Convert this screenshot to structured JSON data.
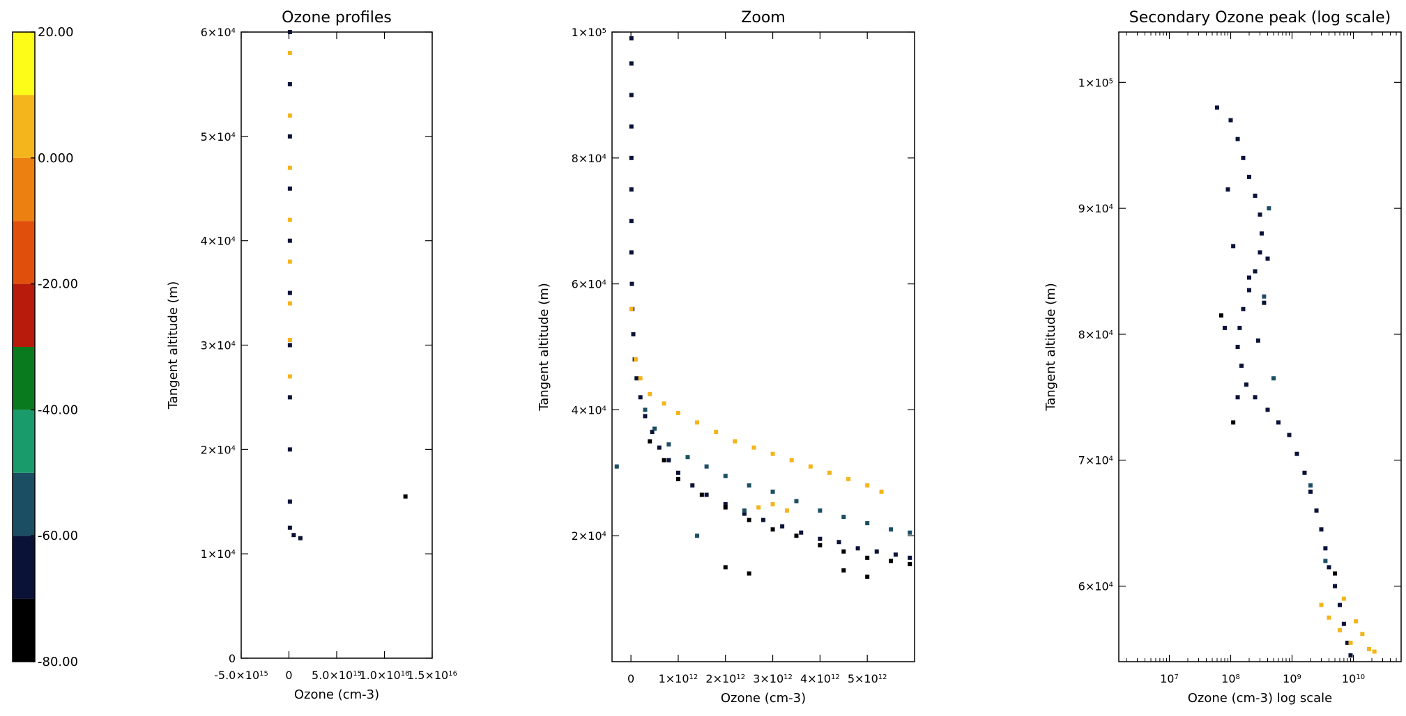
{
  "colorbar": {
    "ticks": [
      "20.00",
      "0.000",
      "-20.00",
      "-40.00",
      "-60.00",
      "-80.00"
    ],
    "min": -80,
    "max": 20,
    "bands": [
      {
        "from": -80,
        "to": -70,
        "color": "#000000"
      },
      {
        "from": -70,
        "to": -60,
        "color": "#0a1238"
      },
      {
        "from": -60,
        "to": -50,
        "color": "#1c4e63"
      },
      {
        "from": -50,
        "to": -40,
        "color": "#1a9b6c"
      },
      {
        "from": -40,
        "to": -30,
        "color": "#0a7a1e"
      },
      {
        "from": -30,
        "to": -20,
        "color": "#b81b0c"
      },
      {
        "from": -20,
        "to": -10,
        "color": "#e0500c"
      },
      {
        "from": -10,
        "to": 0,
        "color": "#ec8010"
      },
      {
        "from": 0,
        "to": 10,
        "color": "#f4b41c"
      },
      {
        "from": 10,
        "to": 20,
        "color": "#fcfc18"
      }
    ]
  },
  "chart_data": [
    {
      "type": "scatter",
      "title": "Ozone profiles",
      "xlabel": "Ozone (cm-3)",
      "ylabel": "Tangent altitude (m)",
      "xlim": [
        -5000000000000000.0,
        1.5e+16
      ],
      "ylim": [
        0,
        60000
      ],
      "x_ticks": [
        {
          "value": -5000000000000000.0,
          "mant": "-5.0×10",
          "exp": "15"
        },
        {
          "value": 0,
          "mant": "0",
          "exp": ""
        },
        {
          "value": 5000000000000000.0,
          "mant": "5.0×10",
          "exp": "15"
        },
        {
          "value": 1e+16,
          "mant": "1.0×10",
          "exp": "16"
        },
        {
          "value": 1.5e+16,
          "mant": "1.5×10",
          "exp": "16"
        }
      ],
      "y_ticks": [
        {
          "value": 0,
          "mant": "0",
          "exp": ""
        },
        {
          "value": 10000,
          "mant": "1×10",
          "exp": "4"
        },
        {
          "value": 20000,
          "mant": "2×10",
          "exp": "4"
        },
        {
          "value": 30000,
          "mant": "3×10",
          "exp": "4"
        },
        {
          "value": 40000,
          "mant": "4×10",
          "exp": "4"
        },
        {
          "value": 50000,
          "mant": "5×10",
          "exp": "4"
        },
        {
          "value": 60000,
          "mant": "6×10",
          "exp": "4"
        }
      ],
      "series": [
        {
          "color": "#0a1238",
          "points": [
            [
              100000000000000.0,
              60000
            ],
            [
              100000000000000.0,
              55000
            ],
            [
              100000000000000.0,
              50000
            ],
            [
              100000000000000.0,
              45000
            ],
            [
              100000000000000.0,
              40000
            ],
            [
              100000000000000.0,
              35000
            ],
            [
              100000000000000.0,
              30000
            ],
            [
              100000000000000.0,
              25000
            ],
            [
              100000000000000.0,
              20000
            ],
            [
              100000000000000.0,
              15000
            ],
            [
              100000000000000.0,
              12500
            ],
            [
              500000000000000.0,
              11800
            ],
            [
              1200000000000000.0,
              11500
            ]
          ]
        },
        {
          "color": "#f4b41c",
          "points": [
            [
              100000000000000.0,
              58000
            ],
            [
              100000000000000.0,
              52000
            ],
            [
              100000000000000.0,
              47000
            ],
            [
              100000000000000.0,
              42000
            ],
            [
              100000000000000.0,
              38000
            ],
            [
              100000000000000.0,
              34000
            ],
            [
              100000000000000.0,
              30500
            ],
            [
              100000000000000.0,
              27000
            ]
          ]
        },
        {
          "color": "#000000",
          "points": [
            [
              1.22e+16,
              15500
            ]
          ]
        }
      ]
    },
    {
      "type": "scatter",
      "title": "Zoom",
      "xlabel": "Ozone (cm-3)",
      "ylabel": "Tangent altitude (m)",
      "xlim": [
        -400000000000.0,
        6000000000000.0
      ],
      "ylim": [
        0,
        100000
      ],
      "x_ticks": [
        {
          "value": 0,
          "mant": "0",
          "exp": ""
        },
        {
          "value": 1000000000000.0,
          "mant": "1×10",
          "exp": "12"
        },
        {
          "value": 2000000000000.0,
          "mant": "2×10",
          "exp": "12"
        },
        {
          "value": 3000000000000.0,
          "mant": "3×10",
          "exp": "12"
        },
        {
          "value": 4000000000000.0,
          "mant": "4×10",
          "exp": "12"
        },
        {
          "value": 5000000000000.0,
          "mant": "5×10",
          "exp": "12"
        }
      ],
      "y_ticks": [
        {
          "value": 20000,
          "mant": "2×10",
          "exp": "4"
        },
        {
          "value": 40000,
          "mant": "4×10",
          "exp": "4"
        },
        {
          "value": 60000,
          "mant": "6×10",
          "exp": "4"
        },
        {
          "value": 80000,
          "mant": "8×10",
          "exp": "4"
        },
        {
          "value": 100000,
          "mant": "1×10",
          "exp": "5"
        }
      ],
      "series": [
        {
          "color": "#0a1238",
          "points": [
            [
              10000000000.0,
              99000
            ],
            [
              10000000000.0,
              95000
            ],
            [
              10000000000.0,
              90000
            ],
            [
              10000000000.0,
              85000
            ],
            [
              10000000000.0,
              80000
            ],
            [
              10000000000.0,
              75000
            ],
            [
              10000000000.0,
              70000
            ],
            [
              10000000000.0,
              65000
            ],
            [
              20000000000.0,
              60000
            ],
            [
              30000000000.0,
              56000
            ],
            [
              50000000000.0,
              52000
            ],
            [
              80000000000.0,
              48000
            ],
            [
              120000000000.0,
              45000
            ],
            [
              200000000000.0,
              42000
            ],
            [
              300000000000.0,
              39000
            ],
            [
              450000000000.0,
              36500
            ],
            [
              600000000000.0,
              34000
            ],
            [
              800000000000.0,
              32000
            ],
            [
              1000000000000.0,
              30000
            ],
            [
              1300000000000.0,
              28000
            ],
            [
              1600000000000.0,
              26500
            ],
            [
              2000000000000.0,
              25000
            ],
            [
              2400000000000.0,
              23500
            ],
            [
              2800000000000.0,
              22500
            ],
            [
              3200000000000.0,
              21500
            ],
            [
              3600000000000.0,
              20500
            ],
            [
              4000000000000.0,
              19500
            ],
            [
              4400000000000.0,
              19000
            ],
            [
              4800000000000.0,
              18000
            ],
            [
              5200000000000.0,
              17500
            ],
            [
              5600000000000.0,
              17000
            ],
            [
              5900000000000.0,
              16500
            ]
          ]
        },
        {
          "color": "#000000",
          "points": [
            [
              400000000000.0,
              35000
            ],
            [
              700000000000.0,
              32000
            ],
            [
              1000000000000.0,
              29000
            ],
            [
              1500000000000.0,
              26500
            ],
            [
              2000000000000.0,
              24500
            ],
            [
              2500000000000.0,
              22500
            ],
            [
              3000000000000.0,
              21000
            ],
            [
              3500000000000.0,
              20000
            ],
            [
              4000000000000.0,
              18500
            ],
            [
              4500000000000.0,
              17500
            ],
            [
              5000000000000.0,
              16500
            ],
            [
              5500000000000.0,
              16000
            ],
            [
              5900000000000.0,
              15500
            ],
            [
              2000000000000.0,
              15000
            ],
            [
              2500000000000.0,
              14000
            ],
            [
              4500000000000.0,
              14500
            ],
            [
              5000000000000.0,
              13500
            ]
          ]
        },
        {
          "color": "#1c4e63",
          "points": [
            [
              -300000000000.0,
              31000
            ],
            [
              300000000000.0,
              40000
            ],
            [
              500000000000.0,
              37000
            ],
            [
              800000000000.0,
              34500
            ],
            [
              1200000000000.0,
              32500
            ],
            [
              1600000000000.0,
              31000
            ],
            [
              2000000000000.0,
              29500
            ],
            [
              2500000000000.0,
              28000
            ],
            [
              3000000000000.0,
              27000
            ],
            [
              3500000000000.0,
              25500
            ],
            [
              4000000000000.0,
              24000
            ],
            [
              4500000000000.0,
              23000
            ],
            [
              5000000000000.0,
              22000
            ],
            [
              5500000000000.0,
              21000
            ],
            [
              5900000000000.0,
              20500
            ],
            [
              1400000000000.0,
              20000
            ],
            [
              2400000000000.0,
              24000
            ]
          ]
        },
        {
          "color": "#f4b41c",
          "points": [
            [
              10000000000.0,
              56000
            ],
            [
              100000000000.0,
              48000
            ],
            [
              200000000000.0,
              45000
            ],
            [
              400000000000.0,
              42500
            ],
            [
              700000000000.0,
              41000
            ],
            [
              1000000000000.0,
              39500
            ],
            [
              1400000000000.0,
              38000
            ],
            [
              1800000000000.0,
              36500
            ],
            [
              2200000000000.0,
              35000
            ],
            [
              2600000000000.0,
              34000
            ],
            [
              3000000000000.0,
              33000
            ],
            [
              3400000000000.0,
              32000
            ],
            [
              3800000000000.0,
              31000
            ],
            [
              4200000000000.0,
              30000
            ],
            [
              4600000000000.0,
              29000
            ],
            [
              5000000000000.0,
              28000
            ],
            [
              5300000000000.0,
              27000
            ],
            [
              3000000000000.0,
              25000
            ],
            [
              2700000000000.0,
              24500
            ],
            [
              3300000000000.0,
              24000
            ]
          ]
        }
      ]
    },
    {
      "type": "scatter",
      "title": "Secondary Ozone peak (log scale)",
      "xlabel": "Ozone (cm-3) log scale",
      "ylabel": "Tangent altitude (m)",
      "xscale": "log",
      "xlim": [
        1500000.0,
        60000000000.0
      ],
      "ylim": [
        54000,
        104000
      ],
      "x_ticks": [
        {
          "value": 10000000.0,
          "mant": "10",
          "exp": "7"
        },
        {
          "value": 100000000.0,
          "mant": "10",
          "exp": "8"
        },
        {
          "value": 1000000000.0,
          "mant": "10",
          "exp": "9"
        },
        {
          "value": 10000000000.0,
          "mant": "10",
          "exp": "10"
        }
      ],
      "y_ticks": [
        {
          "value": 60000,
          "mant": "6×10",
          "exp": "4"
        },
        {
          "value": 70000,
          "mant": "7×10",
          "exp": "4"
        },
        {
          "value": 80000,
          "mant": "8×10",
          "exp": "4"
        },
        {
          "value": 90000,
          "mant": "9×10",
          "exp": "4"
        },
        {
          "value": 100000,
          "mant": "1×10",
          "exp": "5"
        }
      ],
      "series": [
        {
          "color": "#0a1238",
          "points": [
            [
              60000000.0,
              98000
            ],
            [
              100000000.0,
              97000
            ],
            [
              130000000.0,
              95500
            ],
            [
              160000000.0,
              94000
            ],
            [
              200000000.0,
              92500
            ],
            [
              250000000.0,
              91000
            ],
            [
              300000000.0,
              89500
            ],
            [
              320000000.0,
              88000
            ],
            [
              300000000.0,
              86500
            ],
            [
              250000000.0,
              85000
            ],
            [
              200000000.0,
              83500
            ],
            [
              160000000.0,
              82000
            ],
            [
              140000000.0,
              80500
            ],
            [
              130000000.0,
              79000
            ],
            [
              150000000.0,
              77500
            ],
            [
              180000000.0,
              76000
            ],
            [
              250000000.0,
              75000
            ],
            [
              400000000.0,
              74000
            ],
            [
              600000000.0,
              73000
            ],
            [
              900000000.0,
              72000
            ],
            [
              1200000000.0,
              70500
            ],
            [
              1600000000.0,
              69000
            ],
            [
              2000000000.0,
              67500
            ],
            [
              2500000000.0,
              66000
            ],
            [
              3000000000.0,
              64500
            ],
            [
              3500000000.0,
              63000
            ],
            [
              4000000000.0,
              61500
            ],
            [
              5000000000.0,
              60000
            ],
            [
              6000000000.0,
              58500
            ],
            [
              7000000000.0,
              57000
            ],
            [
              8000000000.0,
              55500
            ],
            [
              9000000000.0,
              54500
            ],
            [
              80000000.0,
              80500
            ],
            [
              130000000.0,
              75000
            ],
            [
              200000000.0,
              84500
            ],
            [
              400000000.0,
              86000
            ],
            [
              350000000.0,
              82500
            ],
            [
              280000000.0,
              79500
            ],
            [
              110000000.0,
              87000
            ],
            [
              90000000.0,
              91500
            ]
          ]
        },
        {
          "color": "#1c4e63",
          "points": [
            [
              500000000.0,
              76500
            ],
            [
              350000000.0,
              83000
            ],
            [
              420000000.0,
              90000
            ],
            [
              2000000000.0,
              68000
            ],
            [
              3500000000.0,
              62000
            ]
          ]
        },
        {
          "color": "#000000",
          "points": [
            [
              110000000.0,
              73000
            ],
            [
              70000000.0,
              81500
            ],
            [
              5000000000.0,
              61000
            ]
          ]
        },
        {
          "color": "#f4b41c",
          "points": [
            [
              3000000000.0,
              58500
            ],
            [
              4000000000.0,
              57500
            ],
            [
              6000000000.0,
              56500
            ],
            [
              9000000000.0,
              55500
            ],
            [
              14000000000.0,
              56200
            ],
            [
              18000000000.0,
              55000
            ],
            [
              22000000000.0,
              54800
            ],
            [
              7000000000.0,
              59000
            ],
            [
              11000000000.0,
              57200
            ]
          ]
        }
      ]
    }
  ]
}
